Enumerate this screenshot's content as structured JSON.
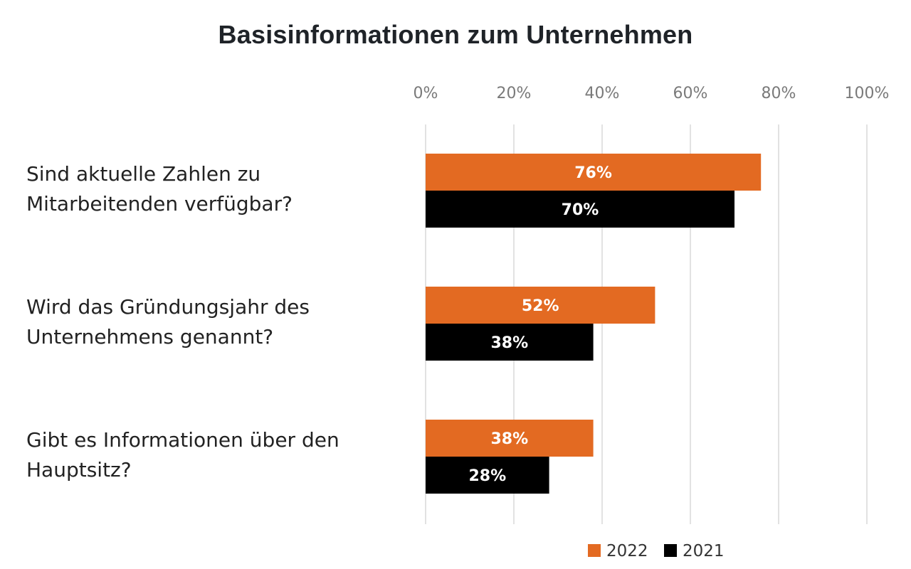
{
  "chart_data": {
    "type": "bar",
    "orientation": "horizontal",
    "title": "Basisinformationen zum Unternehmen",
    "categories": [
      [
        "Sind aktuelle Zahlen zu",
        "Mitarbeitenden verfügbar?"
      ],
      [
        "Wird das Gründungsjahr des",
        "Unternehmens genannt?"
      ],
      [
        "Gibt es Informationen über den",
        "Hauptsitz?"
      ]
    ],
    "series": [
      {
        "name": "2022",
        "color": "#e36a22",
        "values": [
          76,
          52,
          38
        ],
        "labels": [
          "76%",
          "52%",
          "38%"
        ]
      },
      {
        "name": "2021",
        "color": "#000000",
        "values": [
          70,
          38,
          28
        ],
        "labels": [
          "70%",
          "38%",
          "28%"
        ]
      }
    ],
    "xlim": [
      0,
      100
    ],
    "xticks": [
      "0%",
      "20%",
      "40%",
      "60%",
      "80%",
      "100%"
    ],
    "xtick_values": [
      0,
      20,
      40,
      60,
      80,
      100
    ],
    "grid": true,
    "legend": "bottom-right"
  }
}
